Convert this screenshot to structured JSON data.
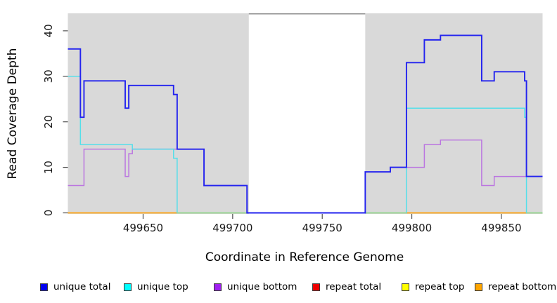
{
  "chart_data": {
    "type": "line",
    "subtype": "step-coverage",
    "title": "",
    "xlabel": "Coordinate in Reference Genome",
    "ylabel": "Read Coverage Depth",
    "xlim": [
      499608,
      499873
    ],
    "ylim": [
      0,
      43.8
    ],
    "x_ticks": [
      499650,
      499700,
      499750,
      499800,
      499850
    ],
    "y_ticks": [
      0,
      10,
      20,
      30,
      40
    ],
    "grid": false,
    "legend_position": "bottom",
    "shaded_regions": [
      {
        "name": "alignable-region-left",
        "start": 499608,
        "end": 499709,
        "color": "#d9d9d9"
      },
      {
        "name": "alignable-region-right",
        "start": 499774,
        "end": 499873,
        "color": "#d9d9d9"
      }
    ],
    "gap_region": {
      "start": 499709,
      "end": 499774,
      "top_border_color": "#8f8f8f"
    },
    "series": [
      {
        "name": "unique total",
        "line_color": "#2323ef",
        "steps": [
          [
            499608,
            36
          ],
          [
            499615,
            21
          ],
          [
            499617,
            29
          ],
          [
            499640,
            23
          ],
          [
            499642,
            28
          ],
          [
            499667,
            26
          ],
          [
            499669,
            14
          ],
          [
            499684,
            6
          ],
          [
            499708,
            0
          ],
          [
            499774,
            9
          ],
          [
            499788,
            10
          ],
          [
            499797,
            33
          ],
          [
            499807,
            38
          ],
          [
            499816,
            39
          ],
          [
            499839,
            29
          ],
          [
            499846,
            31
          ],
          [
            499863,
            29
          ],
          [
            499864,
            8
          ]
        ]
      },
      {
        "name": "unique top",
        "line_color": "#55dfe9",
        "steps": [
          [
            499608,
            30
          ],
          [
            499615,
            15
          ],
          [
            499644,
            14
          ],
          [
            499667,
            12
          ],
          [
            499669,
            0
          ],
          [
            499797,
            23
          ],
          [
            499863,
            21
          ],
          [
            499864,
            0
          ]
        ]
      },
      {
        "name": "unique bottom",
        "line_color": "#bb76e0",
        "steps": [
          [
            499608,
            6
          ],
          [
            499617,
            14
          ],
          [
            499640,
            8
          ],
          [
            499642,
            13
          ],
          [
            499644,
            14
          ],
          [
            499684,
            6
          ],
          [
            499708,
            0
          ],
          [
            499774,
            9
          ],
          [
            499788,
            10
          ],
          [
            499807,
            15
          ],
          [
            499816,
            16
          ],
          [
            499839,
            6
          ],
          [
            499846,
            8
          ]
        ]
      },
      {
        "name": "repeat total",
        "line_color": "#dd2222",
        "steps": [
          [
            499608,
            0
          ]
        ]
      },
      {
        "name": "repeat top",
        "line_color": "#ffff33",
        "steps": [
          [
            499608,
            0
          ]
        ]
      },
      {
        "name": "repeat bottom",
        "line_color": "#ffa319",
        "steps": [
          [
            499608,
            0
          ]
        ]
      }
    ],
    "overlap_zero_color": "#98d998"
  },
  "legend": {
    "items": [
      {
        "label": "unique total",
        "swatch_color": "#0000ee"
      },
      {
        "label": "unique top",
        "swatch_color": "#00ffff"
      },
      {
        "label": "unique bottom",
        "swatch_color": "#a020f0"
      },
      {
        "label": "repeat total",
        "swatch_color": "#ee0000"
      },
      {
        "label": "repeat top",
        "swatch_color": "#ffff00"
      },
      {
        "label": "repeat bottom",
        "swatch_color": "#ffa500"
      }
    ]
  },
  "colors": {
    "panel_shading": "#d9d9d9",
    "tick": "#4d4d4d",
    "tick_label": "#1a1a1a"
  }
}
